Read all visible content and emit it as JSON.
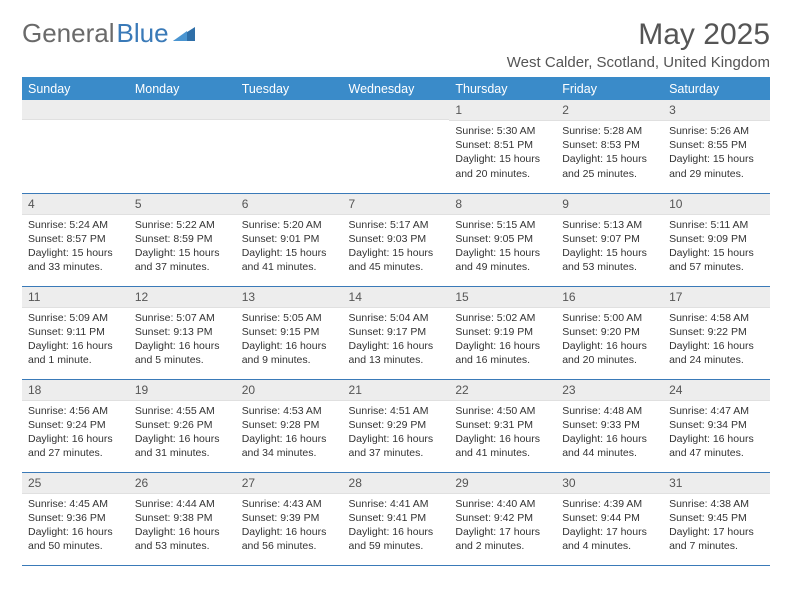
{
  "logo": {
    "text_gray": "General",
    "text_blue": "Blue"
  },
  "header": {
    "month_title": "May 2025",
    "location": "West Calder, Scotland, United Kingdom"
  },
  "colors": {
    "header_bg": "#3a8bc9",
    "header_text": "#ffffff",
    "daynum_bg": "#ededed",
    "cell_border": "#3a7ab8",
    "body_text": "#333333",
    "logo_gray": "#6a6a6a",
    "logo_blue": "#3a7ab8"
  },
  "day_headers": [
    "Sunday",
    "Monday",
    "Tuesday",
    "Wednesday",
    "Thursday",
    "Friday",
    "Saturday"
  ],
  "weeks": [
    [
      {
        "n": "",
        "sr": "",
        "ss": "",
        "dl": ""
      },
      {
        "n": "",
        "sr": "",
        "ss": "",
        "dl": ""
      },
      {
        "n": "",
        "sr": "",
        "ss": "",
        "dl": ""
      },
      {
        "n": "",
        "sr": "",
        "ss": "",
        "dl": ""
      },
      {
        "n": "1",
        "sr": "Sunrise: 5:30 AM",
        "ss": "Sunset: 8:51 PM",
        "dl": "Daylight: 15 hours and 20 minutes."
      },
      {
        "n": "2",
        "sr": "Sunrise: 5:28 AM",
        "ss": "Sunset: 8:53 PM",
        "dl": "Daylight: 15 hours and 25 minutes."
      },
      {
        "n": "3",
        "sr": "Sunrise: 5:26 AM",
        "ss": "Sunset: 8:55 PM",
        "dl": "Daylight: 15 hours and 29 minutes."
      }
    ],
    [
      {
        "n": "4",
        "sr": "Sunrise: 5:24 AM",
        "ss": "Sunset: 8:57 PM",
        "dl": "Daylight: 15 hours and 33 minutes."
      },
      {
        "n": "5",
        "sr": "Sunrise: 5:22 AM",
        "ss": "Sunset: 8:59 PM",
        "dl": "Daylight: 15 hours and 37 minutes."
      },
      {
        "n": "6",
        "sr": "Sunrise: 5:20 AM",
        "ss": "Sunset: 9:01 PM",
        "dl": "Daylight: 15 hours and 41 minutes."
      },
      {
        "n": "7",
        "sr": "Sunrise: 5:17 AM",
        "ss": "Sunset: 9:03 PM",
        "dl": "Daylight: 15 hours and 45 minutes."
      },
      {
        "n": "8",
        "sr": "Sunrise: 5:15 AM",
        "ss": "Sunset: 9:05 PM",
        "dl": "Daylight: 15 hours and 49 minutes."
      },
      {
        "n": "9",
        "sr": "Sunrise: 5:13 AM",
        "ss": "Sunset: 9:07 PM",
        "dl": "Daylight: 15 hours and 53 minutes."
      },
      {
        "n": "10",
        "sr": "Sunrise: 5:11 AM",
        "ss": "Sunset: 9:09 PM",
        "dl": "Daylight: 15 hours and 57 minutes."
      }
    ],
    [
      {
        "n": "11",
        "sr": "Sunrise: 5:09 AM",
        "ss": "Sunset: 9:11 PM",
        "dl": "Daylight: 16 hours and 1 minute."
      },
      {
        "n": "12",
        "sr": "Sunrise: 5:07 AM",
        "ss": "Sunset: 9:13 PM",
        "dl": "Daylight: 16 hours and 5 minutes."
      },
      {
        "n": "13",
        "sr": "Sunrise: 5:05 AM",
        "ss": "Sunset: 9:15 PM",
        "dl": "Daylight: 16 hours and 9 minutes."
      },
      {
        "n": "14",
        "sr": "Sunrise: 5:04 AM",
        "ss": "Sunset: 9:17 PM",
        "dl": "Daylight: 16 hours and 13 minutes."
      },
      {
        "n": "15",
        "sr": "Sunrise: 5:02 AM",
        "ss": "Sunset: 9:19 PM",
        "dl": "Daylight: 16 hours and 16 minutes."
      },
      {
        "n": "16",
        "sr": "Sunrise: 5:00 AM",
        "ss": "Sunset: 9:20 PM",
        "dl": "Daylight: 16 hours and 20 minutes."
      },
      {
        "n": "17",
        "sr": "Sunrise: 4:58 AM",
        "ss": "Sunset: 9:22 PM",
        "dl": "Daylight: 16 hours and 24 minutes."
      }
    ],
    [
      {
        "n": "18",
        "sr": "Sunrise: 4:56 AM",
        "ss": "Sunset: 9:24 PM",
        "dl": "Daylight: 16 hours and 27 minutes."
      },
      {
        "n": "19",
        "sr": "Sunrise: 4:55 AM",
        "ss": "Sunset: 9:26 PM",
        "dl": "Daylight: 16 hours and 31 minutes."
      },
      {
        "n": "20",
        "sr": "Sunrise: 4:53 AM",
        "ss": "Sunset: 9:28 PM",
        "dl": "Daylight: 16 hours and 34 minutes."
      },
      {
        "n": "21",
        "sr": "Sunrise: 4:51 AM",
        "ss": "Sunset: 9:29 PM",
        "dl": "Daylight: 16 hours and 37 minutes."
      },
      {
        "n": "22",
        "sr": "Sunrise: 4:50 AM",
        "ss": "Sunset: 9:31 PM",
        "dl": "Daylight: 16 hours and 41 minutes."
      },
      {
        "n": "23",
        "sr": "Sunrise: 4:48 AM",
        "ss": "Sunset: 9:33 PM",
        "dl": "Daylight: 16 hours and 44 minutes."
      },
      {
        "n": "24",
        "sr": "Sunrise: 4:47 AM",
        "ss": "Sunset: 9:34 PM",
        "dl": "Daylight: 16 hours and 47 minutes."
      }
    ],
    [
      {
        "n": "25",
        "sr": "Sunrise: 4:45 AM",
        "ss": "Sunset: 9:36 PM",
        "dl": "Daylight: 16 hours and 50 minutes."
      },
      {
        "n": "26",
        "sr": "Sunrise: 4:44 AM",
        "ss": "Sunset: 9:38 PM",
        "dl": "Daylight: 16 hours and 53 minutes."
      },
      {
        "n": "27",
        "sr": "Sunrise: 4:43 AM",
        "ss": "Sunset: 9:39 PM",
        "dl": "Daylight: 16 hours and 56 minutes."
      },
      {
        "n": "28",
        "sr": "Sunrise: 4:41 AM",
        "ss": "Sunset: 9:41 PM",
        "dl": "Daylight: 16 hours and 59 minutes."
      },
      {
        "n": "29",
        "sr": "Sunrise: 4:40 AM",
        "ss": "Sunset: 9:42 PM",
        "dl": "Daylight: 17 hours and 2 minutes."
      },
      {
        "n": "30",
        "sr": "Sunrise: 4:39 AM",
        "ss": "Sunset: 9:44 PM",
        "dl": "Daylight: 17 hours and 4 minutes."
      },
      {
        "n": "31",
        "sr": "Sunrise: 4:38 AM",
        "ss": "Sunset: 9:45 PM",
        "dl": "Daylight: 17 hours and 7 minutes."
      }
    ]
  ]
}
